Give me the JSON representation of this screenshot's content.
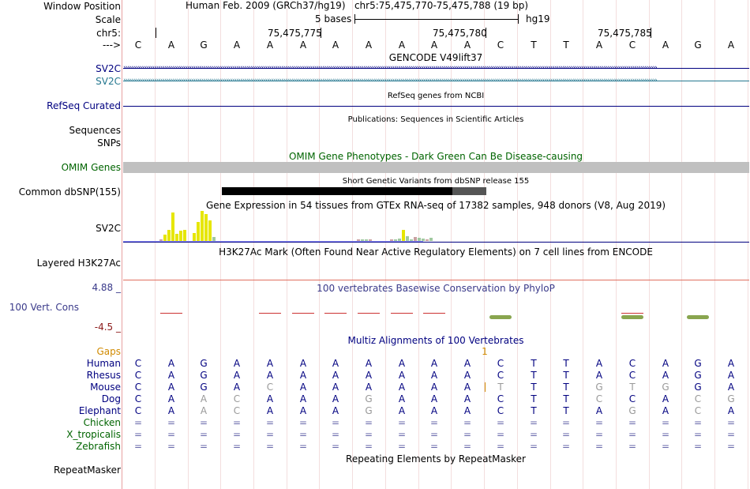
{
  "window_position_label": "Window Position",
  "scale_label": "Scale",
  "chrom_label": "chr5:",
  "strand_label": "--->",
  "assembly": "Human Feb. 2009 (GRCh37/hg19)",
  "position": "chr5:75,475,770-75,475,788 (19 bp)",
  "scale_text": "5 bases",
  "scale_db": "hg19",
  "ticks": [
    "75,475,775",
    "75,475,780",
    "75,475,785"
  ],
  "bases": [
    "C",
    "A",
    "G",
    "A",
    "A",
    "A",
    "A",
    "A",
    "A",
    "A",
    "A",
    "C",
    "T",
    "T",
    "A",
    "C",
    "A",
    "G",
    "A"
  ],
  "gencode": {
    "title": "GENCODE V49lift37",
    "items": [
      "SV2C",
      "SV2C"
    ]
  },
  "refseq": {
    "title": "RefSeq genes from NCBI",
    "label": "RefSeq Curated"
  },
  "pubs": {
    "title": "Publications: Sequences in Scientific Articles",
    "labels": [
      "Sequences",
      "SNPs"
    ]
  },
  "omim": {
    "title": "OMIM Gene Phenotypes - Dark Green Can Be Disease-causing",
    "label": "OMIM Genes"
  },
  "dbsnp": {
    "title": "Short Genetic Variants from dbSNP release 155",
    "label": "Common dbSNP(155)"
  },
  "gtex": {
    "title": "Gene Expression in 54 tissues from GTEx RNA-seq of 17382 samples, 948 donors (V8, Aug 2019)",
    "label": "SV2C"
  },
  "h3k27ac": {
    "title": "H3K27Ac Mark (Often Found Near Active Regulatory Elements) on 7 cell lines from ENCODE",
    "label": "Layered H3K27Ac"
  },
  "phylop": {
    "title": "100 vertebrates Basewise Conservation by PhyloP",
    "label": "100 Vert. Cons",
    "ymax": "4.88 _",
    "ymin": "-4.5 _"
  },
  "multiz": {
    "title": "Multiz Alignments of 100 Vertebrates",
    "gaps_label": "Gaps",
    "gap_count": "1"
  },
  "species": [
    {
      "name": "Human",
      "row": [
        "C",
        "A",
        "G",
        "A",
        "A",
        "A",
        "A",
        "A",
        "A",
        "A",
        "A",
        "C",
        "T",
        "T",
        "A",
        "C",
        "A",
        "G",
        "A"
      ]
    },
    {
      "name": "Rhesus",
      "row": [
        "C",
        "A",
        "G",
        "A",
        "A",
        "A",
        "A",
        "A",
        "A",
        "A",
        "A",
        "C",
        "T",
        "T",
        "A",
        "C",
        "A",
        "G",
        "A"
      ]
    },
    {
      "name": "Mouse",
      "row": [
        "C",
        "A",
        "G",
        "A",
        "C",
        "A",
        "A",
        "A",
        "A",
        "A",
        "A",
        "T",
        "T",
        "T",
        "G",
        "T",
        "G",
        "G",
        "A"
      ]
    },
    {
      "name": "Dog",
      "row": [
        "C",
        "A",
        "A",
        "C",
        "A",
        "A",
        "A",
        "G",
        "A",
        "A",
        "A",
        "C",
        "T",
        "T",
        "C",
        "C",
        "A",
        "C",
        "G"
      ]
    },
    {
      "name": "Elephant",
      "row": [
        "C",
        "A",
        "A",
        "C",
        "A",
        "A",
        "A",
        "G",
        "A",
        "A",
        "A",
        "C",
        "T",
        "T",
        "A",
        "G",
        "A",
        "C",
        "A"
      ]
    },
    {
      "name": "Chicken",
      "row": [
        "=",
        "=",
        "=",
        "=",
        "=",
        "=",
        "=",
        "=",
        "=",
        "=",
        "=",
        "=",
        "=",
        "=",
        "=",
        "=",
        "=",
        "=",
        "="
      ]
    },
    {
      "name": "X_tropicalis",
      "row": [
        "=",
        "=",
        "=",
        "=",
        "=",
        "=",
        "=",
        "=",
        "=",
        "=",
        "=",
        "=",
        "=",
        "=",
        "=",
        "=",
        "=",
        "=",
        "="
      ]
    },
    {
      "name": "Zebrafish",
      "row": [
        "=",
        "=",
        "=",
        "=",
        "=",
        "=",
        "=",
        "=",
        "=",
        "=",
        "=",
        "=",
        "=",
        "=",
        "=",
        "=",
        "=",
        "=",
        "="
      ]
    }
  ],
  "repeatmasker": {
    "title": "Repeating Elements by RepeatMasker",
    "label": "RepeatMasker"
  },
  "colors": {
    "navy": "#000080",
    "teal": "#267890",
    "green": "#006400",
    "phylop_blue": "#3a3a8a",
    "gaps_orange": "#d08a00",
    "yellow": "#e6e600",
    "gray_diff": "#999999"
  },
  "gtex_bars": [
    {
      "col": 1,
      "h": [
        2,
        8,
        14,
        36,
        9,
        13,
        14
      ]
    },
    {
      "col": 2,
      "h": [
        10,
        24,
        38,
        34,
        26,
        5
      ]
    },
    {
      "col": 7,
      "h": [
        2,
        2,
        2,
        2
      ]
    },
    {
      "col": 8,
      "h": [
        2,
        2,
        3,
        14,
        6,
        2,
        5,
        4,
        3,
        2,
        4
      ]
    }
  ]
}
